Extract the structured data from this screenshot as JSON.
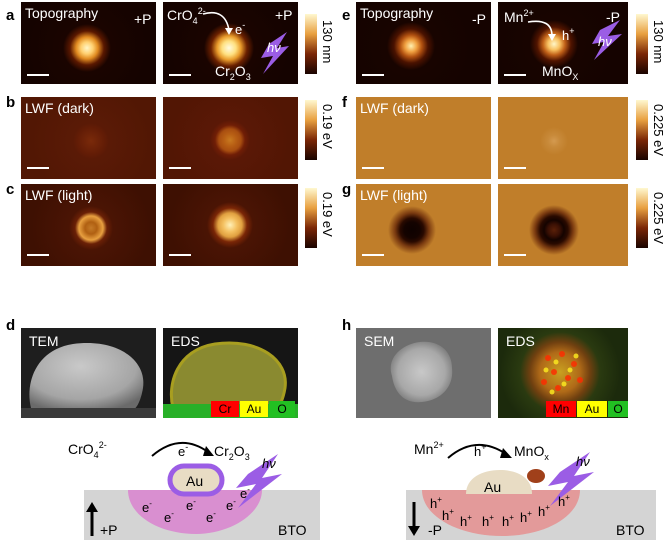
{
  "labels": {
    "a": "a",
    "b": "b",
    "c": "c",
    "d": "d",
    "e": "e",
    "f": "f",
    "g": "g",
    "h": "h"
  },
  "left": {
    "topography": "Topography",
    "pol": "+P",
    "lwf_dark": "LWF (dark)",
    "lwf_light": "LWF (light)",
    "tem": "TEM",
    "eds": "EDS",
    "reactant_base": "CrO",
    "reactant_sub": "4",
    "reactant_sup": "2-",
    "electron": "e",
    "electron_sup": "-",
    "product_base": "Cr",
    "product_sub1": "2",
    "product_mid": "O",
    "product_sub2": "3",
    "hv": "hν",
    "legend": [
      "Cr",
      "Au",
      "O"
    ]
  },
  "right": {
    "topography": "Topography",
    "pol": "-P",
    "lwf_dark": "LWF (dark)",
    "lwf_light": "LWF (light)",
    "sem": "SEM",
    "eds": "EDS",
    "reactant_base": "Mn",
    "reactant_sup": "2+",
    "hole": "h",
    "hole_sup": "+",
    "product_base": "MnO",
    "product_sub": "X",
    "hv": "hν",
    "legend": [
      "Mn",
      "Au",
      "O"
    ]
  },
  "colorbars": {
    "topo_left": "130 nm",
    "dark_left": "0.19 eV",
    "light_left": "0.19 eV",
    "topo_right": "130 nm",
    "dark_right": "0.225 eV",
    "light_right": "0.225 eV"
  },
  "schematic_left": {
    "reactant_base": "CrO",
    "reactant_sub": "4",
    "reactant_sup": "2-",
    "electron": "e",
    "electron_sup": "-",
    "product_base": "Cr",
    "product_sub1": "2",
    "product_mid": "O",
    "product_sub2": "3",
    "metal": "Au",
    "charge": "e",
    "charge_sup": "-",
    "hv": "hν",
    "pol": "+P",
    "substrate": "BTO"
  },
  "schematic_right": {
    "reactant_base": "Mn",
    "reactant_sup": "2+",
    "hole": "h",
    "hole_sup": "+",
    "product_base": "MnO",
    "product_sub": "x",
    "metal": "Au",
    "charge": "h",
    "charge_sup": "+",
    "hv": "hν",
    "pol": "-P",
    "substrate": "BTO"
  },
  "colors": {
    "topo_dark": "#1a0500",
    "afm_brown": "#8a5a1a",
    "pink_region": "#d98fd0",
    "red_region": "#e39a9a",
    "bto": "#d4d4d4",
    "bolt": "#9b5de5",
    "eds_red": "#ff0000",
    "eds_yellow": "#ffff00",
    "eds_green": "#22c022"
  }
}
